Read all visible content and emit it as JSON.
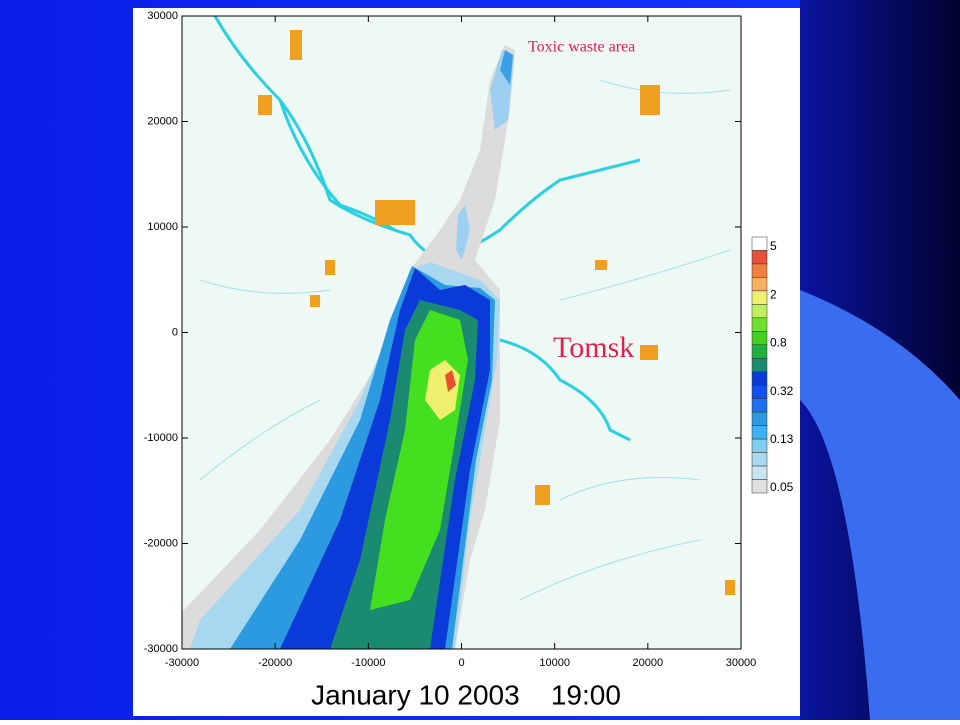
{
  "plot": {
    "x_axis": {
      "ticks": [
        "-30000",
        "-20000",
        "-10000",
        "0",
        "10000",
        "20000",
        "30000"
      ]
    },
    "y_axis": {
      "ticks": [
        "30000",
        "20000",
        "10000",
        "0",
        "-10000",
        "-20000",
        "-30000"
      ]
    },
    "colorbar": {
      "labels": [
        "5",
        "2",
        "0.8",
        "0.32",
        "0.13",
        "0.05"
      ]
    },
    "annotations": [
      "Toxic waste area",
      "Tomsk"
    ],
    "caption": "January 10 2003    19:00"
  }
}
